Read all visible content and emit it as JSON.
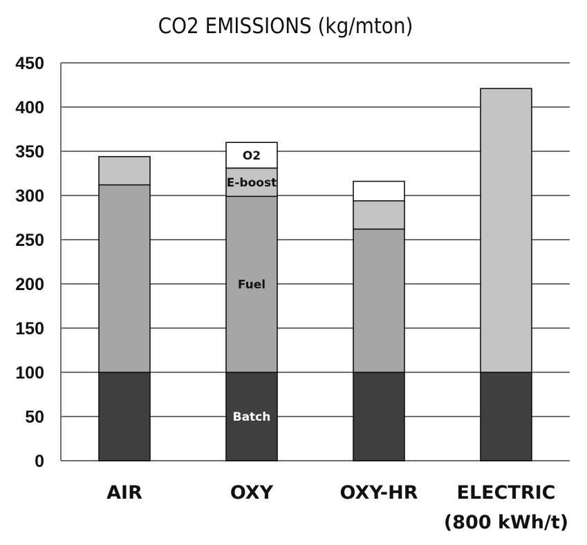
{
  "chart_data": {
    "type": "bar",
    "stacked": true,
    "title": "CO2 EMISSIONS (kg/mton)",
    "xlabel": "",
    "ylabel": "",
    "ylim": [
      0,
      450
    ],
    "yticks": [
      0,
      50,
      100,
      150,
      200,
      250,
      300,
      350,
      400,
      450
    ],
    "grid": true,
    "categories": [
      [
        "AIR"
      ],
      [
        "OXY"
      ],
      [
        "OXY-HR"
      ],
      [
        "ELECTRIC",
        "(800 kWh/t)"
      ]
    ],
    "series": [
      {
        "name": "Batch",
        "color": "#404040",
        "label_color": "#ffffff",
        "values": [
          100,
          100,
          100,
          100
        ]
      },
      {
        "name": "Fuel",
        "color": "#a6a6a6",
        "label_color": "#111111",
        "values": [
          212,
          199,
          162,
          0
        ]
      },
      {
        "name": "E-boost",
        "color": "#c4c4c4",
        "label_color": "#111111",
        "values": [
          32,
          32,
          32,
          321
        ]
      },
      {
        "name": "O2",
        "color": "#ffffff",
        "label_color": "#111111",
        "values": [
          0,
          29,
          22,
          0
        ]
      }
    ],
    "segment_labels_on": "OXY"
  }
}
